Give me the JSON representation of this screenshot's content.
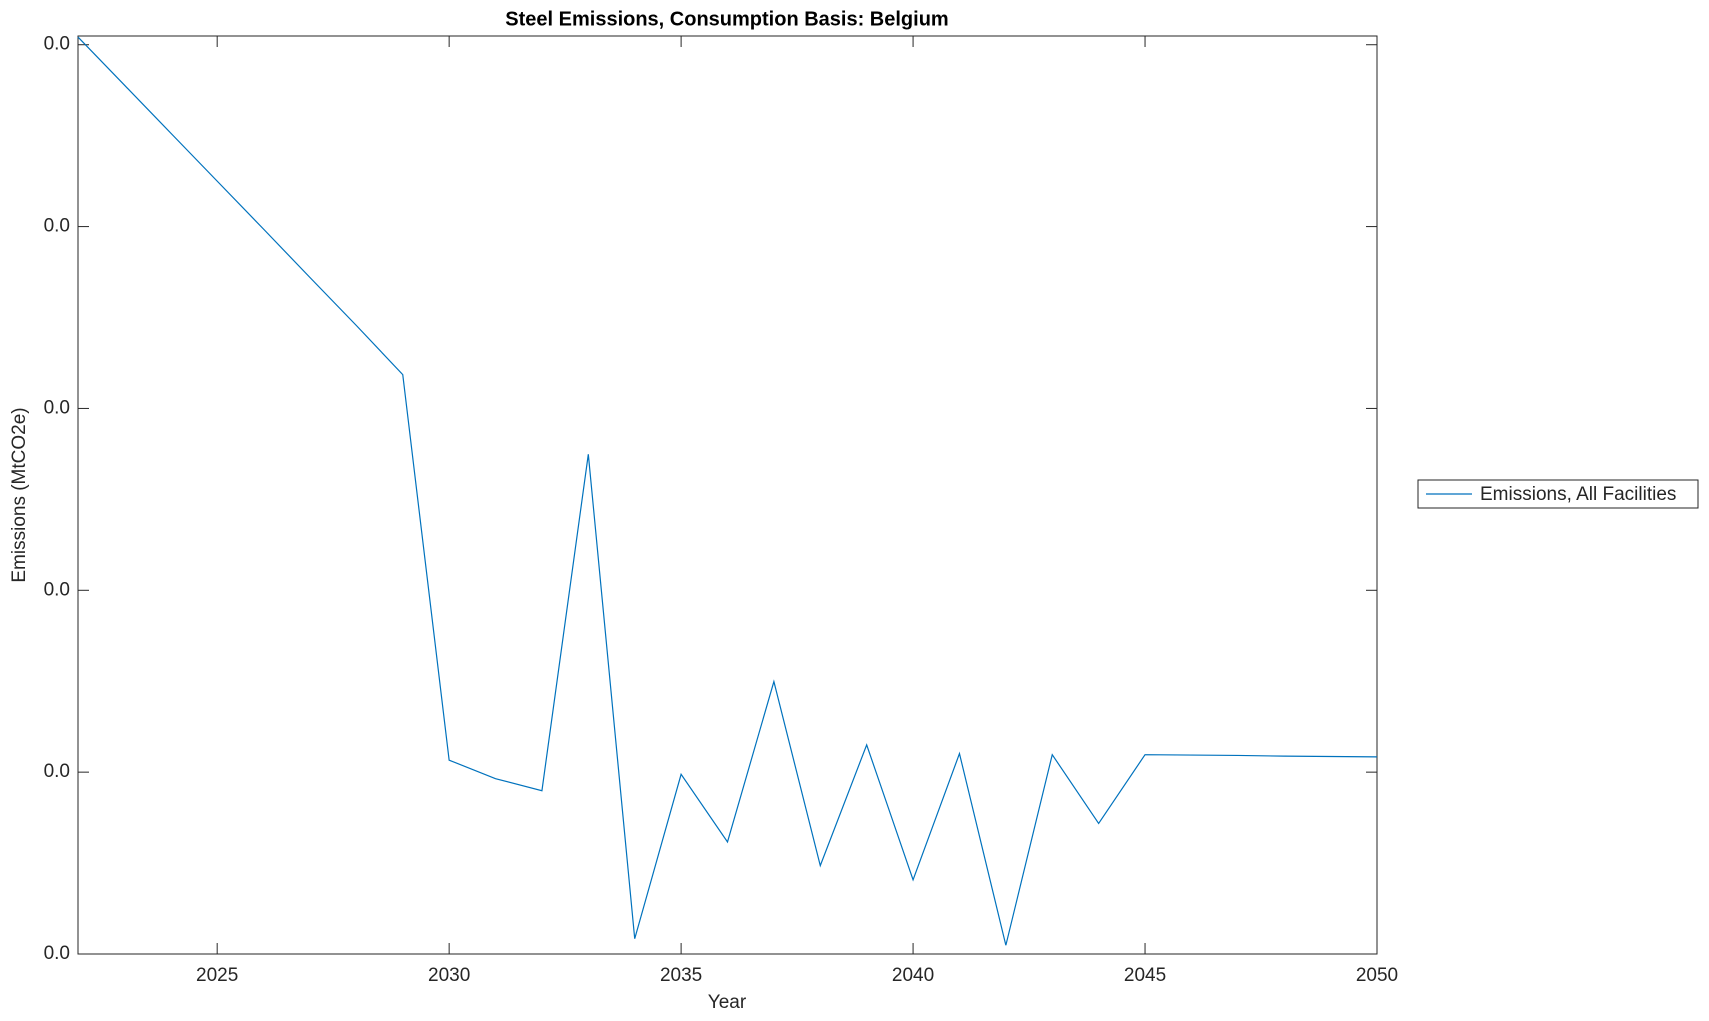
{
  "chart_data": {
    "type": "line",
    "title": "Steel Emissions, Consumption Basis: Belgium",
    "x_label": "Year",
    "y_label": "Emissions (MtCO2e)",
    "x": [
      2022,
      2023,
      2024,
      2025,
      2026,
      2027,
      2028,
      2029,
      2030,
      2031,
      2032,
      2033,
      2034,
      2035,
      2036,
      2037,
      2038,
      2039,
      2040,
      2041,
      2042,
      2043,
      2044,
      2045,
      2046,
      2047,
      2048,
      2049,
      2050
    ],
    "series": [
      {
        "name": "Emissions, All Facilities",
        "color": "#0072bd",
        "values": [
          0.02521,
          0.02389,
          0.02257,
          0.02125,
          0.01993,
          0.0186,
          0.01728,
          0.01593,
          0.00533,
          0.00482,
          0.00449,
          0.01374,
          0.00042,
          0.00494,
          0.00308,
          0.00749,
          0.00243,
          0.00575,
          0.00204,
          0.00551,
          0.00024,
          0.00548,
          0.00359,
          0.00548,
          0.00547,
          0.00546,
          0.00544,
          0.00543,
          0.00542
        ]
      }
    ],
    "xlim": [
      2022,
      2050
    ],
    "xticks": [
      2025,
      2030,
      2035,
      2040,
      2045,
      2050
    ],
    "ylim": [
      0,
      0.02524
    ],
    "yticks": [
      {
        "value": 0,
        "label": "0.0"
      },
      {
        "value": 0.005,
        "label": "0.0"
      },
      {
        "value": 0.01,
        "label": "0.0"
      },
      {
        "value": 0.015,
        "label": "0.0"
      },
      {
        "value": 0.02,
        "label": "0.0"
      },
      {
        "value": 0.025,
        "label": "0.0"
      }
    ],
    "grid": false,
    "legend": "outside-right"
  }
}
